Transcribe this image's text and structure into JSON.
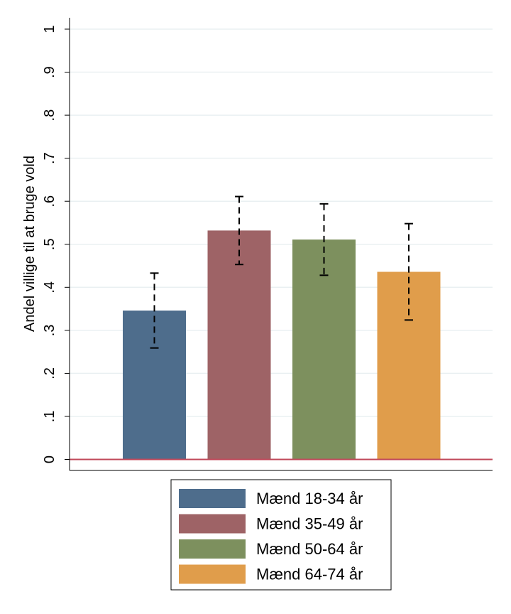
{
  "chart_data": {
    "type": "bar",
    "title": "",
    "xlabel": "",
    "ylabel": "Andel villige til at bruge vold",
    "ylim": [
      0,
      1
    ],
    "yticks": [
      0,
      0.1,
      0.2,
      0.3,
      0.4,
      0.5,
      0.6,
      0.7,
      0.8,
      0.9,
      1
    ],
    "ytick_labels": [
      "0",
      ".1",
      ".2",
      ".3",
      ".4",
      ".5",
      ".6",
      ".7",
      ".8",
      ".9",
      "1"
    ],
    "grid": true,
    "legend_position": "bottom",
    "series": [
      {
        "name": "Mænd 18-34 år",
        "value": 0.346,
        "ci_low": 0.259,
        "ci_high": 0.433,
        "color": "#4e6d8c"
      },
      {
        "name": "Mænd 35-49 år",
        "value": 0.532,
        "ci_low": 0.453,
        "ci_high": 0.611,
        "color": "#9e6366"
      },
      {
        "name": "Mænd 50-64 år",
        "value": 0.511,
        "ci_low": 0.428,
        "ci_high": 0.594,
        "color": "#7d905e"
      },
      {
        "name": "Mænd 64-74 år",
        "value": 0.436,
        "ci_low": 0.324,
        "ci_high": 0.548,
        "color": "#e09d4b"
      }
    ],
    "baseline_color": "#c0485a"
  }
}
